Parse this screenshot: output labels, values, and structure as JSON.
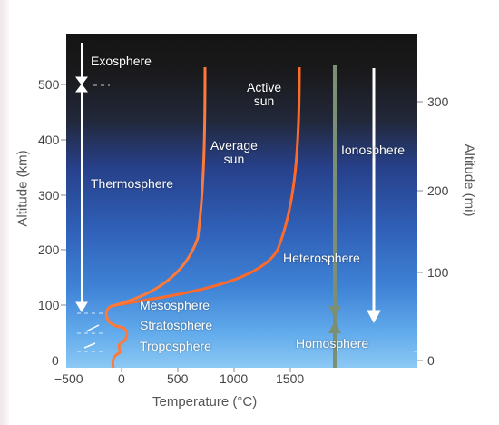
{
  "left_axis": {
    "title": "Altitude (km)",
    "ticks": [
      {
        "label": "500",
        "value": 500
      },
      {
        "label": "400",
        "value": 400
      },
      {
        "label": "300",
        "value": 300
      },
      {
        "label": "200",
        "value": 200
      },
      {
        "label": "100",
        "value": 100
      },
      {
        "label": "0",
        "value": 0
      }
    ]
  },
  "right_axis": {
    "title": "Altitude (mi)",
    "ticks": [
      {
        "label": "300",
        "value": 300
      },
      {
        "label": "200",
        "value": 200
      },
      {
        "label": "100",
        "value": 100
      },
      {
        "label": "0",
        "value": 0
      }
    ]
  },
  "bottom_axis": {
    "title": "Temperature (°C)",
    "ticks": [
      {
        "label": "−500",
        "value": -500
      },
      {
        "label": "0",
        "value": 0
      },
      {
        "label": "500",
        "value": 500
      },
      {
        "label": "1000",
        "value": 1000
      },
      {
        "label": "1500",
        "value": 1500
      }
    ]
  },
  "layers": {
    "exosphere": "Exosphere",
    "thermosphere": "Thermosphere",
    "mesosphere": "Mesosphere",
    "stratosphere": "Stratosphere",
    "troposphere": "Troposphere",
    "ionosphere": "Ionosphere",
    "heterosphere": "Heterosphere",
    "homosphere": "Homosphere"
  },
  "curves": {
    "active_label": "Active\nsun",
    "average_label": "Average\nsun",
    "color": "#ff6a2a"
  }
}
